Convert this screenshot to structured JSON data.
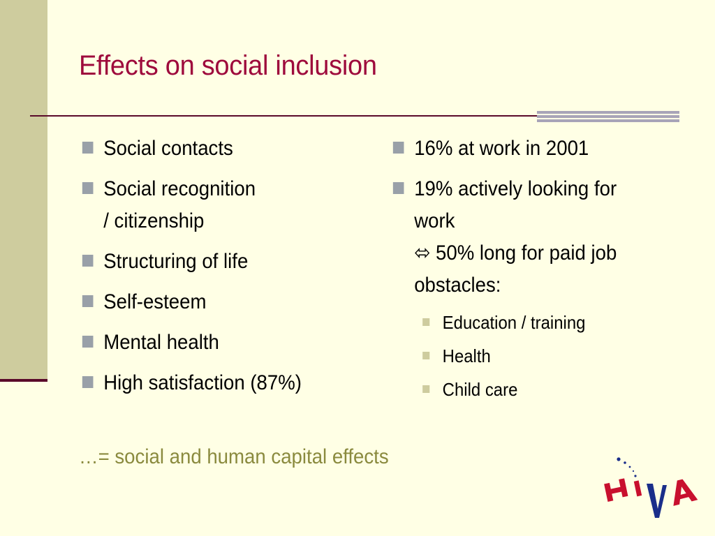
{
  "slide": {
    "title": "Effects on social inclusion",
    "left_column": {
      "items": [
        {
          "lines": [
            "Social contacts"
          ]
        },
        {
          "lines": [
            "Social recognition",
            "/ citizenship"
          ]
        },
        {
          "lines": [
            "Structuring of life"
          ]
        },
        {
          "lines": [
            "Self-esteem"
          ]
        },
        {
          "lines": [
            "Mental health"
          ]
        },
        {
          "lines": [
            "High satisfaction (87%)"
          ]
        }
      ]
    },
    "right_column": {
      "items": [
        {
          "lines": [
            "16% at work in 2001"
          ]
        },
        {
          "lines": [
            "19% actively looking for",
            "work",
            "⬄ 50% long for paid job",
            "obstacles:"
          ]
        }
      ],
      "sub_items": [
        "Education / training",
        "Health",
        "Child care"
      ]
    },
    "footer": "…= social and human capital effects",
    "logo": {
      "text": "HIVA",
      "icon": "hiva-logo-icon"
    }
  },
  "colors": {
    "background": "#FFFFE5",
    "title": "#9E0A3C",
    "footer": "#8A8A3E",
    "rule": "#5A0A2A",
    "band": "#CECC9E",
    "bullet": "#99A0A8",
    "logo_red": "#C8102E",
    "logo_blue": "#1A2E8A"
  }
}
